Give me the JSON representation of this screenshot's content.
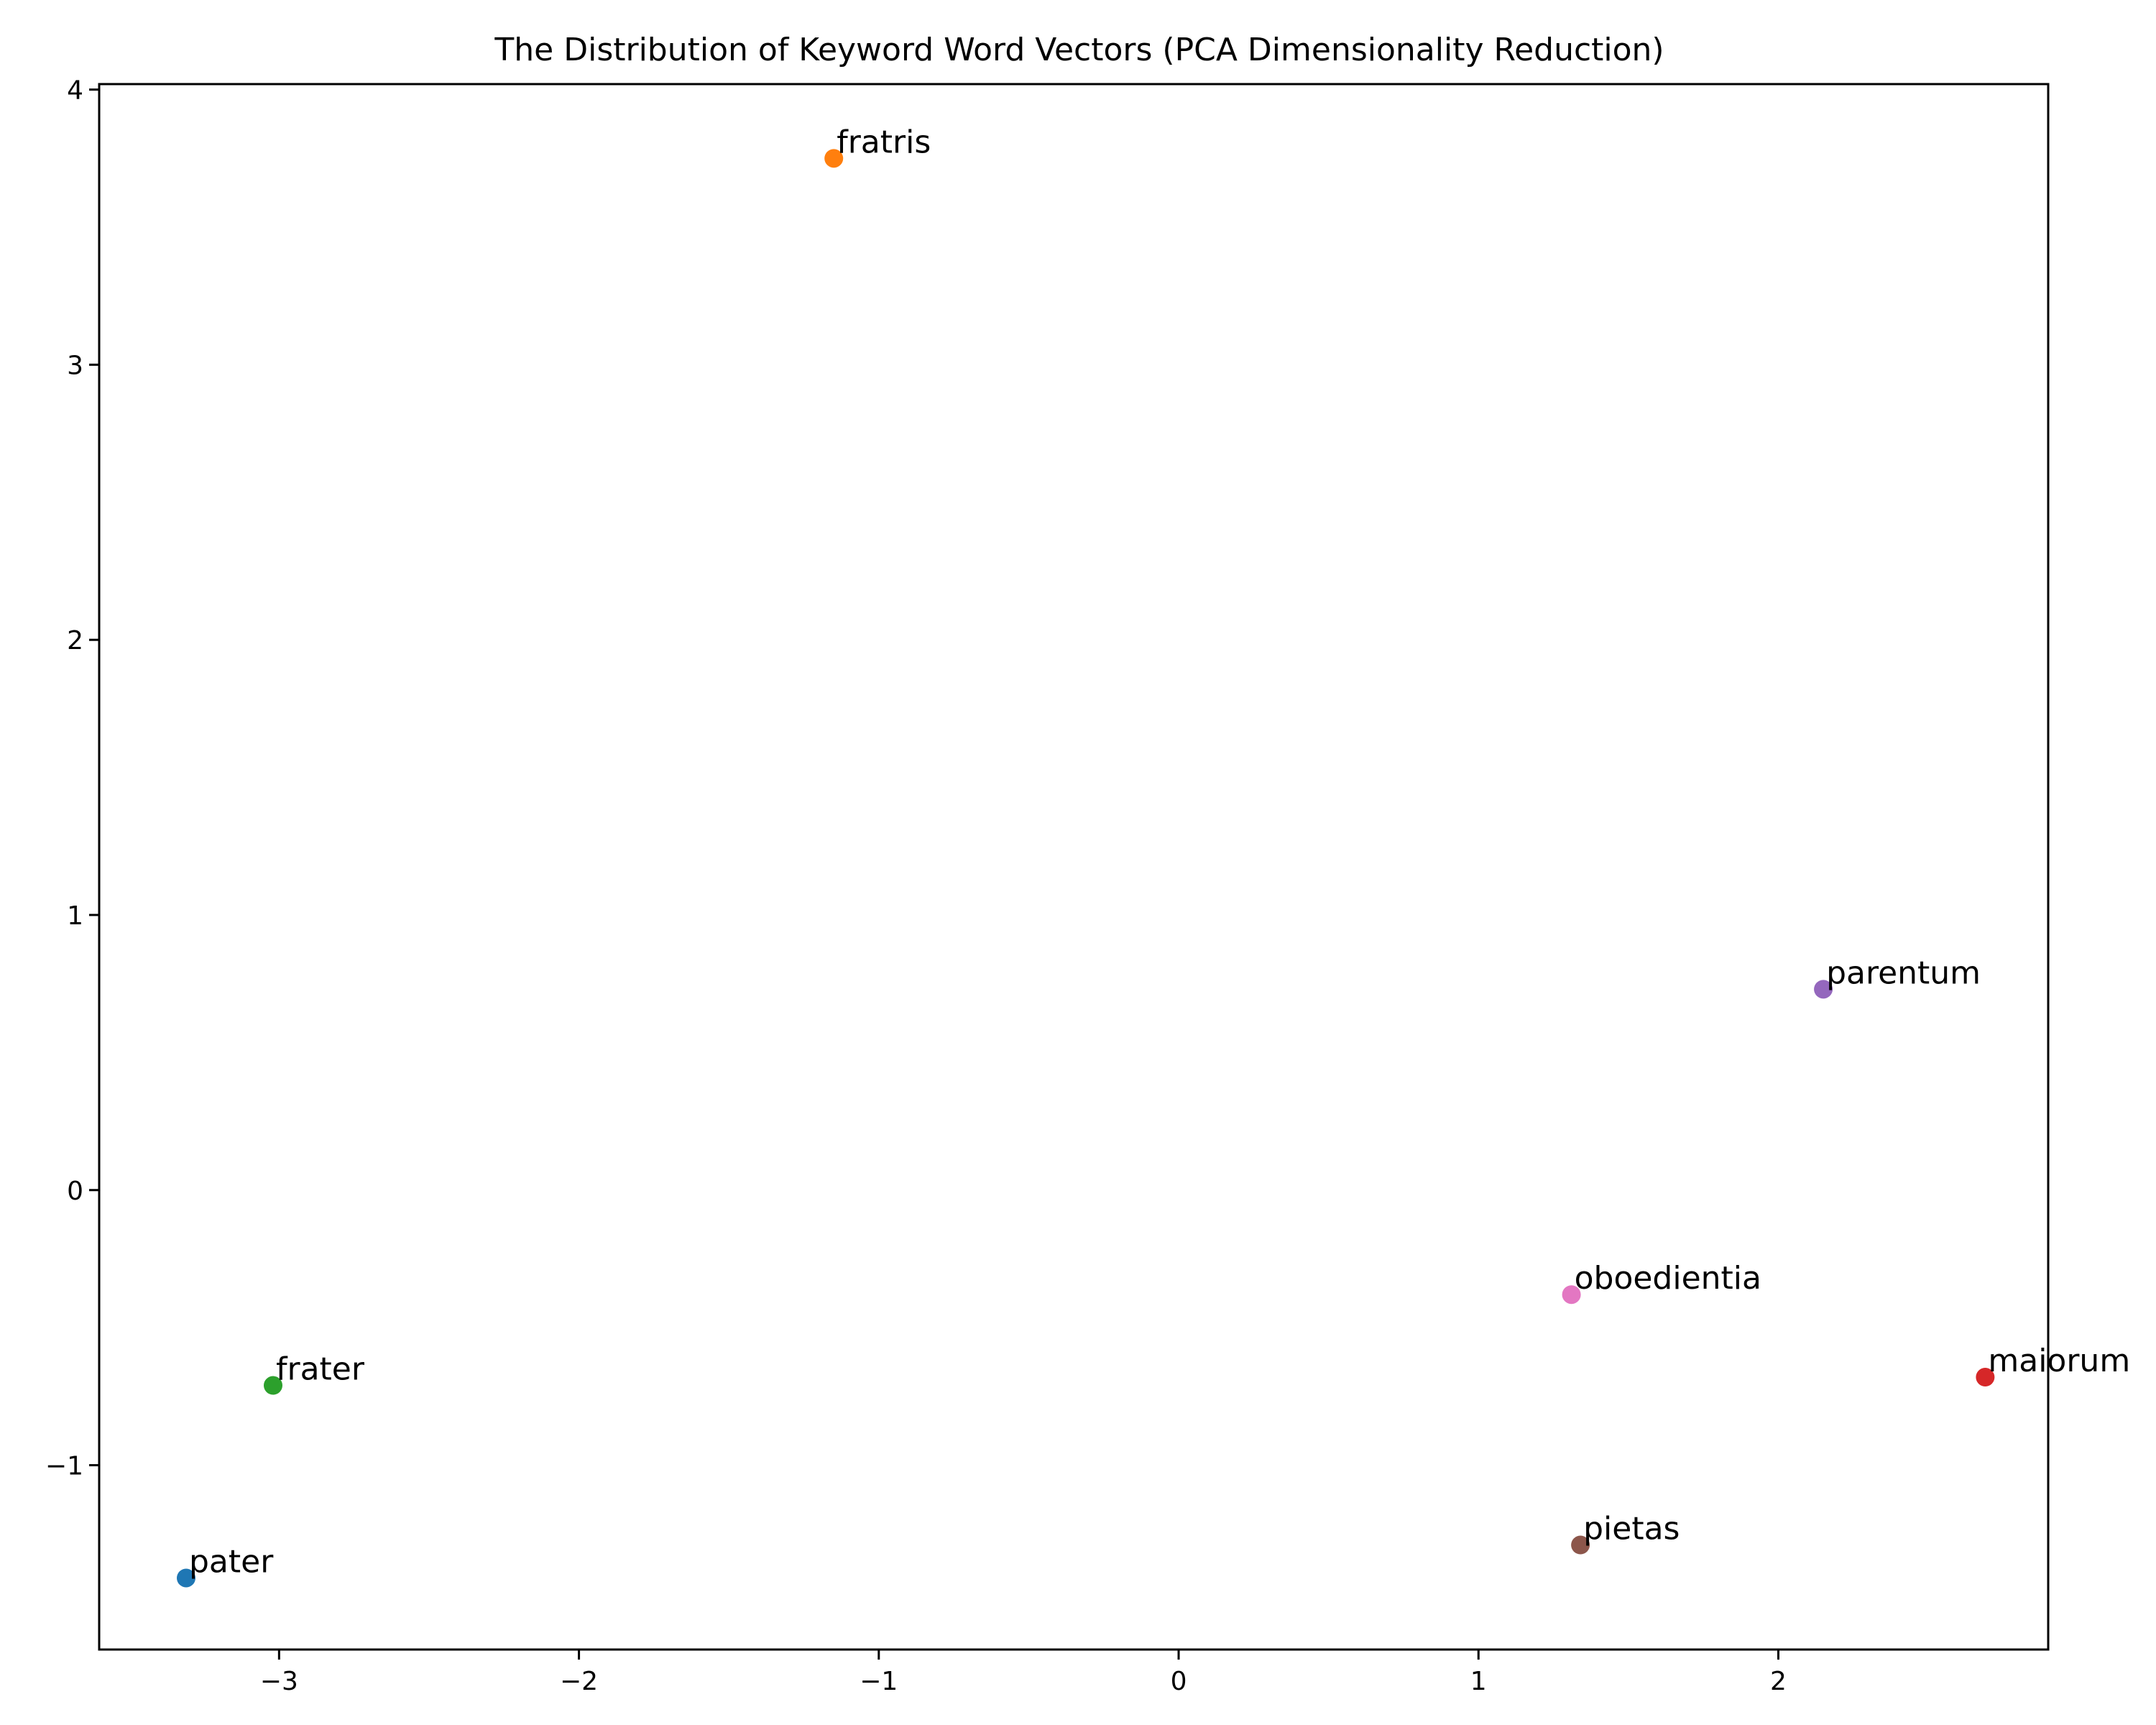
{
  "chart_data": {
    "type": "scatter",
    "title": "The Distribution of Keyword Word Vectors (PCA Dimensionality Reduction)",
    "xlabel": "",
    "ylabel": "",
    "xlim": [
      -3.6,
      2.9
    ],
    "ylim": [
      -1.67,
      4.02
    ],
    "grid": false,
    "xticks": [
      -3,
      -2,
      -1,
      0,
      1,
      2
    ],
    "xtick_labels": [
      "−3",
      "−2",
      "−1",
      "0",
      "1",
      "2"
    ],
    "yticks": [
      -1,
      0,
      1,
      2,
      3,
      4
    ],
    "ytick_labels": [
      "−1",
      "0",
      "1",
      "2",
      "3",
      "4"
    ],
    "points": [
      {
        "label": "pater",
        "x": -3.31,
        "y": -1.41,
        "color": "#1f77b4"
      },
      {
        "label": "fratris",
        "x": -1.15,
        "y": 3.75,
        "color": "#ff7f0e"
      },
      {
        "label": "frater",
        "x": -3.02,
        "y": -0.71,
        "color": "#2ca02c"
      },
      {
        "label": "maiorum",
        "x": 2.69,
        "y": -0.68,
        "color": "#d62728"
      },
      {
        "label": "parentum",
        "x": 2.15,
        "y": 0.73,
        "color": "#9467bd"
      },
      {
        "label": "pietas",
        "x": 1.34,
        "y": -1.29,
        "color": "#8c564b"
      },
      {
        "label": "oboedientia",
        "x": 1.31,
        "y": -0.38,
        "color": "#e377c2"
      }
    ]
  }
}
